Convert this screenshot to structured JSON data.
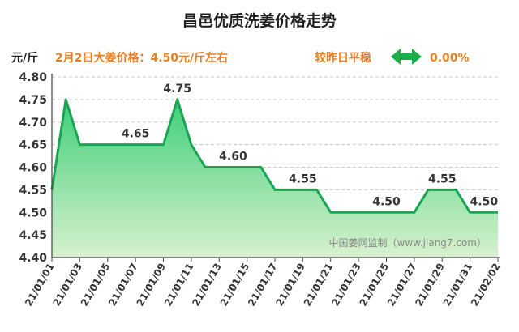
{
  "header": {
    "title": "昌邑优质洗姜价格走势",
    "unit": "元/斤",
    "price_note": "2月2日大姜价格：4.50元/斤左右",
    "change_label": "较昨日平稳",
    "change_icon": "double-arrow-icon",
    "change_value": "0.00%"
  },
  "watermark": "中国姜网监制（www.jiang7.com）",
  "colors": {
    "line": "#1aa552",
    "fill_top": "#3fcf79",
    "fill_bottom": "#d8f1cf",
    "orange": "#e67e22",
    "arrow": "#19b04b"
  },
  "chart_data": {
    "type": "area",
    "title": "昌邑优质洗姜价格走势",
    "ylabel": "元/斤",
    "ylim": [
      4.4,
      4.8
    ],
    "yticks": [
      "4.40",
      "4.45",
      "4.50",
      "4.55",
      "4.60",
      "4.65",
      "4.70",
      "4.75",
      "4.80"
    ],
    "x_tick_labels": [
      "21/01/01",
      "21/01/03",
      "21/01/05",
      "21/01/07",
      "21/01/09",
      "21/01/11",
      "21/01/13",
      "21/01/15",
      "21/01/17",
      "21/01/19",
      "21/01/21",
      "21/01/23",
      "21/01/25",
      "21/01/27",
      "21/01/29",
      "21/01/31",
      "21/02/02"
    ],
    "grid": true,
    "x": [
      "2021-01-01",
      "2021-01-02",
      "2021-01-03",
      "2021-01-04",
      "2021-01-05",
      "2021-01-06",
      "2021-01-07",
      "2021-01-08",
      "2021-01-09",
      "2021-01-10",
      "2021-01-11",
      "2021-01-12",
      "2021-01-13",
      "2021-01-14",
      "2021-01-15",
      "2021-01-16",
      "2021-01-17",
      "2021-01-18",
      "2021-01-19",
      "2021-01-20",
      "2021-01-21",
      "2021-01-22",
      "2021-01-23",
      "2021-01-24",
      "2021-01-25",
      "2021-01-26",
      "2021-01-27",
      "2021-01-28",
      "2021-01-29",
      "2021-01-30",
      "2021-01-31",
      "2021-02-01",
      "2021-02-02"
    ],
    "values": [
      4.55,
      4.75,
      4.65,
      4.65,
      4.65,
      4.65,
      4.65,
      4.65,
      4.65,
      4.75,
      4.65,
      4.6,
      4.6,
      4.6,
      4.6,
      4.6,
      4.55,
      4.55,
      4.55,
      4.55,
      4.5,
      4.5,
      4.5,
      4.5,
      4.5,
      4.5,
      4.5,
      4.55,
      4.55,
      4.55,
      4.5,
      4.5,
      4.5
    ],
    "data_labels": [
      {
        "index": 6,
        "text": "4.65"
      },
      {
        "index": 9,
        "text": "4.75"
      },
      {
        "index": 13,
        "text": "4.60"
      },
      {
        "index": 18,
        "text": "4.55"
      },
      {
        "index": 24,
        "text": "4.50"
      },
      {
        "index": 28,
        "text": "4.55"
      },
      {
        "index": 31,
        "text": "4.50"
      }
    ]
  }
}
